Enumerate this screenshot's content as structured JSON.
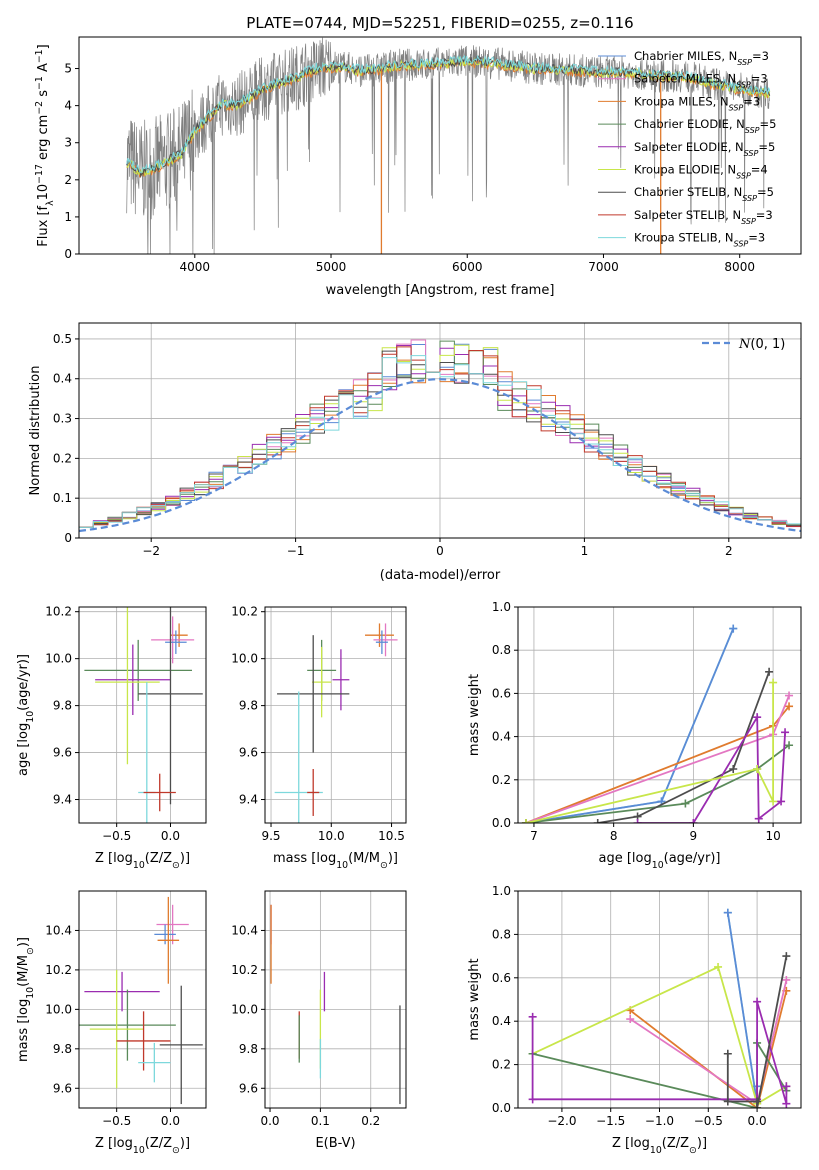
{
  "figure_title": "PLATE=0744, MJD=52251, FIBERID=0255, z=0.116",
  "colors": {
    "Chabrier MILES": "#5b8bd6",
    "Salpeter MILES": "#e377c2",
    "Kroupa MILES": "#e07b2e",
    "Chabrier ELODIE": "#5a8a5a",
    "Salpeter ELODIE": "#9a2cb0",
    "Kroupa ELODIE": "#c8e64a",
    "Chabrier STELIB": "#4d4d4d",
    "Salpeter STELIB": "#c0392b",
    "Kroupa STELIB": "#7dd8dc",
    "data": "#808080",
    "normal": "#5b8bd6"
  },
  "chart_data": [
    {
      "id": "spectrum",
      "type": "line",
      "xlabel": "wavelength [Angstrom, rest frame]",
      "ylabel_parts": [
        "Flux [f",
        "λ",
        "10",
        "−17",
        " erg cm",
        "−2",
        " s",
        "−1",
        " A",
        "−1",
        "]"
      ],
      "xlim": [
        3150,
        8450
      ],
      "ylim": [
        0,
        5.85
      ],
      "xticks": [
        4000,
        5000,
        6000,
        7000,
        8000
      ],
      "yticks": [
        0,
        1,
        2,
        3,
        4,
        5
      ],
      "legend_position": "upper right",
      "legend": [
        {
          "lib": "Chabrier MILES",
          "main": "Chabrier MILES, N",
          "sub": "SSP",
          "tail": "=3"
        },
        {
          "lib": "Salpeter MILES",
          "main": "Salpeter MILES, N",
          "sub": "SSP",
          "tail": "=3"
        },
        {
          "lib": "Kroupa MILES",
          "main": "Kroupa MILES, N",
          "sub": "SSP",
          "tail": "=3"
        },
        {
          "lib": "Chabrier ELODIE",
          "main": "Chabrier ELODIE, N",
          "sub": "SSP",
          "tail": "=5"
        },
        {
          "lib": "Salpeter ELODIE",
          "main": "Salpeter ELODIE, N",
          "sub": "SSP",
          "tail": "=5"
        },
        {
          "lib": "Kroupa ELODIE",
          "main": "Kroupa ELODIE, N",
          "sub": "SSP",
          "tail": "=4"
        },
        {
          "lib": "Chabrier STELIB",
          "main": "Chabrier STELIB, N",
          "sub": "SSP",
          "tail": "=5"
        },
        {
          "lib": "Salpeter STELIB",
          "main": "Salpeter STELIB, N",
          "sub": "SSP",
          "tail": "=3"
        },
        {
          "lib": "Kroupa STELIB",
          "main": "Kroupa STELIB, N",
          "sub": "SSP",
          "tail": "=3"
        }
      ],
      "continuum_model": {
        "x": [
          3500,
          3600,
          3700,
          3800,
          3900,
          4000,
          4100,
          4200,
          4300,
          4400,
          4500,
          4600,
          4700,
          4800,
          4900,
          5000,
          5100,
          5200,
          5300,
          5500,
          5700,
          6000,
          6200,
          6500,
          6800,
          7000,
          7200,
          7400,
          7600,
          7800,
          8000,
          8200
        ],
        "y": [
          2.5,
          2.2,
          2.3,
          2.5,
          2.7,
          3.3,
          3.7,
          4.05,
          4.0,
          4.2,
          4.45,
          4.6,
          4.7,
          4.85,
          5.0,
          5.05,
          5.05,
          4.95,
          4.95,
          5.1,
          5.1,
          5.2,
          5.15,
          5.0,
          4.95,
          4.9,
          4.9,
          4.8,
          4.8,
          4.6,
          4.45,
          4.35
        ]
      }
    },
    {
      "id": "residuals",
      "type": "histogram",
      "xlabel": "(data-model)/error",
      "ylabel": "Normed distribution",
      "xlim": [
        -2.5,
        2.5
      ],
      "ylim": [
        0,
        0.54
      ],
      "xticks": [
        -2,
        -1,
        0,
        1,
        2
      ],
      "yticks": [
        0.0,
        0.1,
        0.2,
        0.3,
        0.4,
        0.5
      ],
      "bin_width": 0.1,
      "legend": {
        "label_math": "N",
        "label_text": "(0, 1)",
        "position": "upper right"
      },
      "model": "standard normal density"
    },
    {
      "id": "Z-vs-age",
      "type": "scatter",
      "xlabel_parts": [
        "Z [log",
        "10",
        "(Z/Z",
        "⊙",
        ")]"
      ],
      "ylabel_parts": [
        "age  [log",
        "10",
        "(age/yr)]"
      ],
      "xlim": [
        -0.85,
        0.33
      ],
      "ylim": [
        9.3,
        10.22
      ],
      "xticks": [
        -0.5,
        0.0
      ],
      "xticklabels": [
        "−0.5",
        "0.0"
      ],
      "yticks": [
        9.4,
        9.6,
        9.8,
        10.0,
        10.2
      ],
      "yticklabels": [
        "9.4",
        "9.6",
        "9.8",
        "10.0",
        "10.2"
      ],
      "points": [
        {
          "lib": "Kroupa MILES",
          "x": 0.08,
          "y": 10.1,
          "xerr": 0.08,
          "yerr": 0.05
        },
        {
          "lib": "Salpeter MILES",
          "x": 0.02,
          "y": 10.08,
          "xerr": 0.2,
          "yerr": 0.1
        },
        {
          "lib": "Chabrier MILES",
          "x": 0.05,
          "y": 10.07,
          "xerr": 0.1,
          "yerr": 0.05
        },
        {
          "lib": "Chabrier ELODIE",
          "x": -0.3,
          "y": 9.95,
          "xerr": 0.5,
          "yerr": 0.13
        },
        {
          "lib": "Salpeter ELODIE",
          "x": -0.35,
          "y": 9.91,
          "xerr": 0.35,
          "yerr": 0.15
        },
        {
          "lib": "Kroupa ELODIE",
          "x": -0.4,
          "y": 9.9,
          "xerr": 0.3,
          "yerr": 0.35
        },
        {
          "lib": "Chabrier STELIB",
          "x": 0.0,
          "y": 9.85,
          "xerr": 0.3,
          "yerr": 0.47
        },
        {
          "lib": "Kroupa STELIB",
          "x": -0.22,
          "y": 9.43,
          "xerr": 0.08,
          "yerr": 0.47
        },
        {
          "lib": "Salpeter STELIB",
          "x": -0.1,
          "y": 9.43,
          "xerr": 0.15,
          "yerr": 0.08
        }
      ]
    },
    {
      "id": "mass-vs-age",
      "type": "scatter",
      "xlabel_parts": [
        "mass [log",
        "10",
        "(M/M",
        "⊙",
        ")]"
      ],
      "ylabel_parts": [],
      "xlim": [
        9.45,
        10.62
      ],
      "ylim": [
        9.3,
        10.22
      ],
      "xticks": [
        9.5,
        10.0,
        10.5
      ],
      "xticklabels": [
        "9.5",
        "10.0",
        "10.5"
      ],
      "yticks": [
        9.4,
        9.6,
        9.8,
        10.0,
        10.2
      ],
      "yticklabels": [
        "9.4",
        "9.6",
        "9.8",
        "10.0",
        "10.2"
      ],
      "points": [
        {
          "lib": "Kroupa MILES",
          "x": 10.4,
          "y": 10.1,
          "xerr": 0.12,
          "yerr": 0.05
        },
        {
          "lib": "Salpeter MILES",
          "x": 10.45,
          "y": 10.08,
          "xerr": 0.1,
          "yerr": 0.07
        },
        {
          "lib": "Chabrier MILES",
          "x": 10.42,
          "y": 10.07,
          "xerr": 0.05,
          "yerr": 0.05
        },
        {
          "lib": "Chabrier ELODIE",
          "x": 9.92,
          "y": 9.95,
          "xerr": 0.12,
          "yerr": 0.13
        },
        {
          "lib": "Salpeter ELODIE",
          "x": 10.08,
          "y": 9.91,
          "xerr": 0.07,
          "yerr": 0.13
        },
        {
          "lib": "Kroupa ELODIE",
          "x": 9.92,
          "y": 9.9,
          "xerr": 0.08,
          "yerr": 0.15
        },
        {
          "lib": "Chabrier STELIB",
          "x": 9.85,
          "y": 9.85,
          "xerr": 0.3,
          "yerr": 0.25
        },
        {
          "lib": "Kroupa STELIB",
          "x": 9.73,
          "y": 9.43,
          "xerr": 0.2,
          "yerr": 0.43
        },
        {
          "lib": "Salpeter STELIB",
          "x": 9.85,
          "y": 9.43,
          "xerr": 0.05,
          "yerr": 0.1
        }
      ]
    },
    {
      "id": "weight-vs-age",
      "type": "line",
      "xlabel_parts": [
        "age  [log",
        "10",
        "(age/yr)]"
      ],
      "ylabel": "mass weight",
      "xlim": [
        6.8,
        10.35
      ],
      "ylim": [
        0,
        1.0
      ],
      "xticks": [
        7,
        8,
        9,
        10
      ],
      "xticklabels": [
        "7",
        "8",
        "9",
        "10"
      ],
      "yticks": [
        0.0,
        0.2,
        0.4,
        0.6,
        0.8,
        1.0
      ],
      "yticklabels": [
        "0.0",
        "0.2",
        "0.4",
        "0.6",
        "0.8",
        "1.0"
      ],
      "series": [
        {
          "lib": "Kroupa STELIB",
          "x": [
            6.9,
            8.6,
            9.5
          ],
          "y": [
            0.0,
            0.1,
            0.9
          ]
        },
        {
          "lib": "Chabrier MILES",
          "x": [
            6.9,
            8.6,
            9.5
          ],
          "y": [
            0.0,
            0.1,
            0.9
          ]
        },
        {
          "lib": "Kroupa MILES",
          "x": [
            6.9,
            10.0,
            10.2
          ],
          "y": [
            0.0,
            0.45,
            0.54
          ]
        },
        {
          "lib": "Salpeter MILES",
          "x": [
            6.9,
            10.0,
            10.2
          ],
          "y": [
            0.0,
            0.41,
            0.59
          ]
        },
        {
          "lib": "Chabrier ELODIE",
          "x": [
            6.9,
            8.9,
            9.8,
            10.2
          ],
          "y": [
            0.0,
            0.09,
            0.25,
            0.36
          ]
        },
        {
          "lib": "Chabrier STELIB",
          "x": [
            7.8,
            8.3,
            9.5,
            9.95
          ],
          "y": [
            0.0,
            0.03,
            0.25,
            0.7
          ]
        },
        {
          "lib": "Salpeter ELODIE",
          "x": [
            8.3,
            9.0,
            9.8,
            9.82,
            10.1,
            10.15
          ],
          "y": [
            0.0,
            0.0,
            0.49,
            0.02,
            0.1,
            0.42
          ]
        },
        {
          "lib": "Kroupa ELODIE",
          "x": [
            6.9,
            9.8,
            10.0,
            10.0
          ],
          "y": [
            0.0,
            0.25,
            0.1,
            0.65
          ]
        }
      ]
    },
    {
      "id": "Z-vs-mass",
      "type": "scatter",
      "xlabel_parts": [
        "Z [log",
        "10",
        "(Z/Z",
        "⊙",
        ")]"
      ],
      "ylabel_parts": [
        "mass [log",
        "10",
        "(M/M",
        "⊙",
        ")]"
      ],
      "xlim": [
        -0.85,
        0.33
      ],
      "ylim": [
        9.5,
        10.6
      ],
      "xticks": [
        -0.5,
        0.0
      ],
      "xticklabels": [
        "−0.5",
        "0.0"
      ],
      "yticks": [
        9.6,
        9.8,
        10.0,
        10.2,
        10.4
      ],
      "yticklabels": [
        "9.6",
        "9.8",
        "10.0",
        "10.2",
        "10.4"
      ],
      "points": [
        {
          "lib": "Salpeter MILES",
          "x": 0.02,
          "y": 10.43,
          "xerr": 0.15,
          "yerr": 0.1
        },
        {
          "lib": "Chabrier MILES",
          "x": -0.05,
          "y": 10.38,
          "xerr": 0.1,
          "yerr": 0.05
        },
        {
          "lib": "Kroupa MILES",
          "x": -0.02,
          "y": 10.35,
          "xerr": 0.1,
          "yerr": 0.22
        },
        {
          "lib": "Salpeter ELODIE",
          "x": -0.45,
          "y": 10.09,
          "xerr": 0.35,
          "yerr": 0.1
        },
        {
          "lib": "Chabrier ELODIE",
          "x": -0.4,
          "y": 9.92,
          "xerr": 0.45,
          "yerr": 0.18
        },
        {
          "lib": "Kroupa ELODIE",
          "x": -0.5,
          "y": 9.9,
          "xerr": 0.25,
          "yerr": 0.3
        },
        {
          "lib": "Chabrier STELIB",
          "x": 0.1,
          "y": 9.82,
          "xerr": 0.2,
          "yerr": 0.3
        },
        {
          "lib": "Salpeter STELIB",
          "x": -0.25,
          "y": 9.84,
          "xerr": 0.25,
          "yerr": 0.15
        },
        {
          "lib": "Kroupa STELIB",
          "x": -0.15,
          "y": 9.73,
          "xerr": 0.15,
          "yerr": 0.1
        }
      ]
    },
    {
      "id": "ebv-vs-mass",
      "type": "scatter",
      "xlabel": "E(B-V)",
      "ylabel_parts": [],
      "xlim": [
        -0.01,
        0.27
      ],
      "ylim": [
        9.5,
        10.6
      ],
      "xticks": [
        0.0,
        0.1,
        0.2
      ],
      "xticklabels": [
        "0.0",
        "0.1",
        "0.2"
      ],
      "yticks": [
        9.6,
        9.8,
        10.0,
        10.2,
        10.4
      ],
      "yticklabels": [
        "9.6",
        "9.8",
        "10.0",
        "10.2",
        "10.4"
      ],
      "points": [
        {
          "lib": "Salpeter MILES",
          "x": 0.002,
          "y": 10.43,
          "xerr": 0.0,
          "yerr": 0.1
        },
        {
          "lib": "Kroupa MILES",
          "x": 0.002,
          "y": 10.33,
          "xerr": 0.0,
          "yerr": 0.2
        },
        {
          "lib": "Salpeter STELIB",
          "x": 0.058,
          "y": 9.87,
          "xerr": 0.0,
          "yerr": 0.12
        },
        {
          "lib": "Chabrier ELODIE",
          "x": 0.058,
          "y": 9.85,
          "xerr": 0.0,
          "yerr": 0.12
        },
        {
          "lib": "Salpeter ELODIE",
          "x": 0.108,
          "y": 10.09,
          "xerr": 0.0,
          "yerr": 0.1
        },
        {
          "lib": "Kroupa ELODIE",
          "x": 0.1,
          "y": 9.9,
          "xerr": 0.0,
          "yerr": 0.2
        },
        {
          "lib": "Kroupa STELIB",
          "x": 0.1,
          "y": 9.75,
          "xerr": 0.0,
          "yerr": 0.1
        },
        {
          "lib": "Chabrier STELIB",
          "x": 0.258,
          "y": 9.77,
          "xerr": 0.0,
          "yerr": 0.25
        }
      ]
    },
    {
      "id": "weight-vs-Z",
      "type": "line",
      "xlabel_parts": [
        "Z [log",
        "10",
        "(Z/Z",
        "⊙",
        ")]"
      ],
      "ylabel": "mass weight",
      "xlim": [
        -2.45,
        0.45
      ],
      "ylim": [
        0,
        1.0
      ],
      "xticks": [
        -2.0,
        -1.5,
        -1.0,
        -0.5,
        0.0
      ],
      "xticklabels": [
        "−2.0",
        "−1.5",
        "−1.0",
        "−0.5",
        "0.0"
      ],
      "yticks": [
        0.0,
        0.2,
        0.4,
        0.6,
        0.8,
        1.0
      ],
      "yticklabels": [
        "0.0",
        "0.2",
        "0.4",
        "0.6",
        "0.8",
        "1.0"
      ],
      "series": [
        {
          "lib": "Kroupa STELIB",
          "x": [
            -0.3,
            0.0,
            0.0
          ],
          "y": [
            0.9,
            0.02,
            0.1
          ]
        },
        {
          "lib": "Chabrier MILES",
          "x": [
            -0.3,
            0.0,
            0.0
          ],
          "y": [
            0.9,
            0.02,
            0.1
          ]
        },
        {
          "lib": "Kroupa MILES",
          "x": [
            -1.3,
            0.0,
            0.3
          ],
          "y": [
            0.45,
            0.0,
            0.54
          ]
        },
        {
          "lib": "Salpeter MILES",
          "x": [
            -1.3,
            0.0,
            0.3
          ],
          "y": [
            0.41,
            0.02,
            0.59
          ]
        },
        {
          "lib": "Kroupa ELODIE",
          "x": [
            -2.3,
            -0.4,
            0.0,
            0.3
          ],
          "y": [
            0.25,
            0.65,
            0.02,
            0.1
          ]
        },
        {
          "lib": "Chabrier ELODIE",
          "x": [
            -2.3,
            0.0,
            0.0,
            0.3
          ],
          "y": [
            0.25,
            0.0,
            0.3,
            0.08
          ]
        },
        {
          "lib": "Salpeter ELODIE",
          "x": [
            -2.3,
            -2.3,
            0.0,
            0.0,
            0.3,
            0.3
          ],
          "y": [
            0.42,
            0.04,
            0.04,
            0.49,
            0.02,
            0.1
          ]
        },
        {
          "lib": "Chabrier STELIB",
          "x": [
            -0.3,
            -0.3,
            0.0,
            0.0,
            0.3
          ],
          "y": [
            0.25,
            0.03,
            0.03,
            0.0,
            0.7
          ]
        }
      ]
    }
  ]
}
